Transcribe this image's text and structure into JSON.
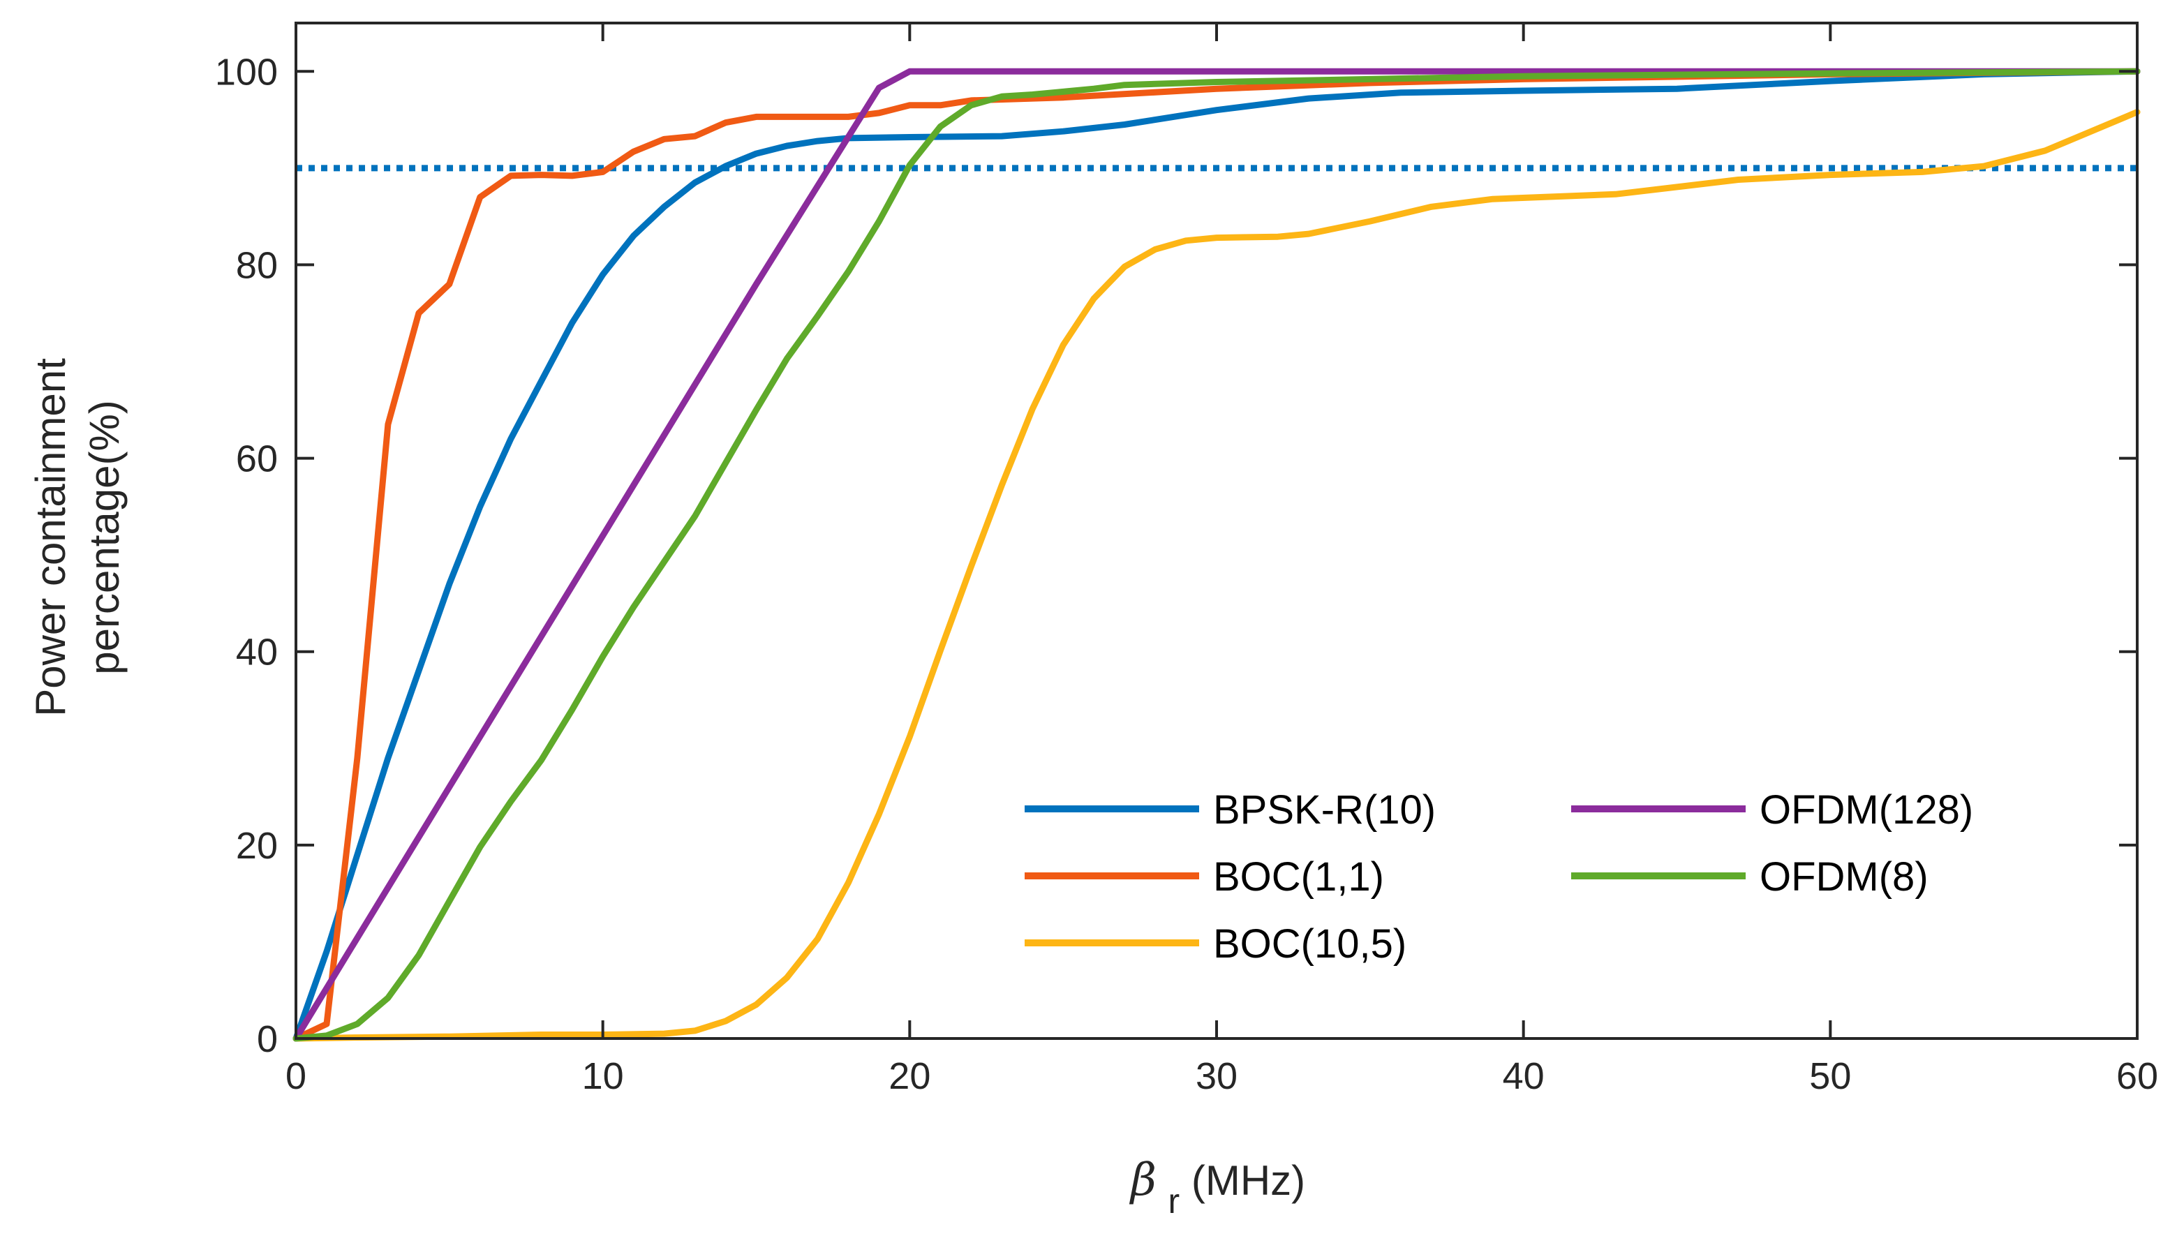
{
  "chart_data": {
    "type": "line",
    "title": "",
    "xlabel": {
      "symbol": "β",
      "subscript": "r",
      "unit": "(MHz)"
    },
    "ylabel": [
      "Power containment",
      "percentage(%)"
    ],
    "xlim": [
      0,
      60
    ],
    "ylim": [
      0,
      105
    ],
    "xticks": [
      0,
      10,
      20,
      30,
      40,
      50,
      60
    ],
    "yticks": [
      0,
      20,
      40,
      60,
      80,
      100
    ],
    "grid": false,
    "legend_position": "bottom-right",
    "reference_line": {
      "y": 90,
      "style": "dotted",
      "color": "#0072BD"
    },
    "series": [
      {
        "name": "BPSK-R(10)",
        "color": "#0072BD",
        "x": [
          0,
          1,
          2,
          3,
          4,
          5,
          6,
          7,
          8,
          9,
          10,
          11,
          12,
          13,
          14,
          15,
          16,
          17,
          18,
          20,
          23,
          25,
          27,
          30,
          33,
          36,
          40,
          45,
          50,
          55,
          60
        ],
        "y": [
          0,
          9,
          19,
          29,
          38,
          47,
          55,
          62,
          68,
          74,
          79,
          83,
          86,
          88.5,
          90.2,
          91.5,
          92.3,
          92.8,
          93.1,
          93.2,
          93.3,
          93.8,
          94.5,
          96,
          97.2,
          97.8,
          98,
          98.2,
          99,
          99.7,
          100
        ]
      },
      {
        "name": "BOC(1,1)",
        "color": "#F05A14",
        "x": [
          0,
          1,
          2,
          3,
          4,
          5,
          6,
          7,
          8,
          9,
          10,
          11,
          12,
          13,
          14,
          15,
          16,
          17,
          18,
          19,
          20,
          21,
          22,
          25,
          30,
          35,
          40,
          50,
          60
        ],
        "y": [
          0,
          1.5,
          29,
          63.5,
          75,
          78,
          87,
          89.2,
          89.3,
          89.2,
          89.6,
          91.7,
          93,
          93.3,
          94.7,
          95.3,
          95.3,
          95.3,
          95.3,
          95.7,
          96.5,
          96.5,
          97,
          97.3,
          98.2,
          98.8,
          99.2,
          99.7,
          100
        ]
      },
      {
        "name": "BOC(10,5)",
        "color": "#FDB515",
        "x": [
          0,
          2,
          5,
          8,
          10,
          12,
          13,
          14,
          15,
          16,
          17,
          18,
          19,
          20,
          21,
          22,
          23,
          24,
          25,
          26,
          27,
          28,
          29,
          30,
          32,
          33,
          35,
          37,
          39,
          43,
          47,
          50,
          53,
          55,
          57,
          60
        ],
        "y": [
          0,
          0.1,
          0.2,
          0.4,
          0.4,
          0.5,
          0.8,
          1.8,
          3.5,
          6.3,
          10.3,
          16.1,
          23.2,
          31.2,
          40.1,
          48.8,
          57.2,
          65.1,
          71.7,
          76.5,
          79.8,
          81.6,
          82.5,
          82.8,
          82.9,
          83.2,
          84.5,
          86,
          86.8,
          87.3,
          88.8,
          89.3,
          89.6,
          90.2,
          91.8,
          95.8
        ]
      },
      {
        "name": "OFDM(128)",
        "color": "#8B2C9C",
        "x": [
          0,
          5,
          10,
          15,
          19,
          20,
          25,
          30,
          40,
          60
        ],
        "y": [
          0,
          26,
          52,
          78,
          98.3,
          100,
          100,
          100,
          100,
          100
        ]
      },
      {
        "name": "OFDM(8)",
        "color": "#5FAA2A",
        "x": [
          0,
          1,
          2,
          3,
          4,
          5,
          6,
          7,
          8,
          9,
          10,
          11,
          12,
          13,
          14,
          15,
          16,
          17,
          18,
          19,
          20,
          21,
          22,
          23,
          24,
          25,
          26,
          27,
          30,
          35,
          40,
          50,
          60
        ],
        "y": [
          0,
          0.3,
          1.5,
          4.2,
          8.6,
          14.2,
          19.8,
          24.5,
          28.8,
          34,
          39.5,
          44.6,
          49.3,
          54,
          59.5,
          65,
          70.3,
          74.7,
          79.3,
          84.5,
          90.3,
          94.3,
          96.5,
          97.4,
          97.6,
          97.9,
          98.2,
          98.6,
          98.9,
          99.2,
          99.5,
          99.8,
          100
        ]
      }
    ],
    "legend_columns": [
      [
        "BPSK-R(10)",
        "BOC(1,1)",
        "BOC(10,5)"
      ],
      [
        "OFDM(128)",
        "OFDM(8)"
      ]
    ]
  }
}
